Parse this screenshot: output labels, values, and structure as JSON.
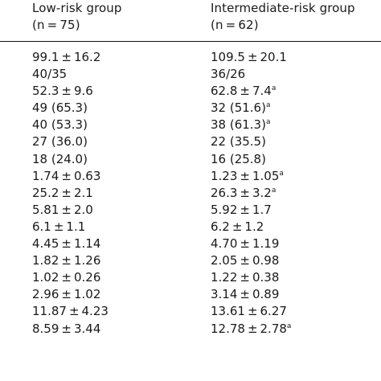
{
  "header": {
    "low": {
      "title": "Low-risk group",
      "n": "(n = 75)"
    },
    "intermediate": {
      "title": "Intermediate-risk group",
      "n": "(n = 62)"
    }
  },
  "rows": [
    {
      "low": "99.1 ± 16.2",
      "int": "109.5 ± 20.1",
      "int_note": ""
    },
    {
      "low": "40/35",
      "int": "36/26",
      "int_note": ""
    },
    {
      "low": "52.3 ± 9.6",
      "int": "62.8 ± 7.4",
      "int_note": "a"
    },
    {
      "low": "49 (65.3)",
      "int": "32 (51.6)",
      "int_note": "a"
    },
    {
      "low": "40 (53.3)",
      "int": "38 (61.3)",
      "int_note": "a"
    },
    {
      "low": "27 (36.0)",
      "int": "22 (35.5)",
      "int_note": ""
    },
    {
      "low": "18 (24.0)",
      "int": "16 (25.8)",
      "int_note": ""
    },
    {
      "low": "1.74 ± 0.63",
      "int": "1.23 ± 1.05",
      "int_note": "a"
    },
    {
      "low": "25.2 ± 2.1",
      "int": "26.3 ± 3.2",
      "int_note": "a"
    },
    {
      "low": "5.81 ± 2.0",
      "int": "5.92 ± 1.7",
      "int_note": ""
    },
    {
      "low": "6.1 ± 1.1",
      "int": "6.2 ± 1.2",
      "int_note": ""
    },
    {
      "low": "4.45 ± 1.14",
      "int": "4.70 ± 1.19",
      "int_note": ""
    },
    {
      "low": "1.82 ± 1.26",
      "int": "2.05 ± 0.98",
      "int_note": ""
    },
    {
      "low": "1.02 ± 0.26",
      "int": "1.22 ± 0.38",
      "int_note": ""
    },
    {
      "low": "2.96 ± 1.02",
      "int": "3.14 ± 0.89",
      "int_note": ""
    },
    {
      "low": "11.87 ± 4.23",
      "int": "13.61 ± 6.27",
      "int_note": ""
    },
    {
      "low": "8.59 ± 3.44",
      "int": "12.78 ± 2.78",
      "int_note": "a"
    }
  ]
}
